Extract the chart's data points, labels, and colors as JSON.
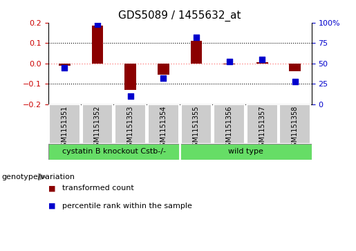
{
  "title": "GDS5089 / 1455632_at",
  "samples": [
    "GSM1151351",
    "GSM1151352",
    "GSM1151353",
    "GSM1151354",
    "GSM1151355",
    "GSM1151356",
    "GSM1151357",
    "GSM1151358"
  ],
  "transformed_count": [
    -0.01,
    0.185,
    -0.13,
    -0.055,
    0.11,
    -0.005,
    0.005,
    -0.04
  ],
  "percentile_rank": [
    45,
    98,
    10,
    32,
    82,
    52,
    55,
    28
  ],
  "left_ylim": [
    -0.2,
    0.2
  ],
  "right_ylim": [
    0,
    100
  ],
  "left_yticks": [
    -0.2,
    -0.1,
    0,
    0.1,
    0.2
  ],
  "right_yticks": [
    0,
    25,
    50,
    75,
    100
  ],
  "right_yticklabels": [
    "0",
    "25",
    "50",
    "75",
    "100%"
  ],
  "bar_color": "#8B0000",
  "dot_color": "#0000CD",
  "bar_width": 0.35,
  "dot_size": 28,
  "groups": [
    {
      "label": "cystatin B knockout Cstb-/-",
      "start": 0,
      "end": 3,
      "color": "#66DD66"
    },
    {
      "label": "wild type",
      "start": 4,
      "end": 7,
      "color": "#66DD66"
    }
  ],
  "legend_items": [
    {
      "label": "transformed count",
      "color": "#8B0000"
    },
    {
      "label": "percentile rank within the sample",
      "color": "#0000CD"
    }
  ],
  "genotype_label": "genotype/variation",
  "dotted_line_color": "#000000",
  "zero_line_color": "#FF8888",
  "background_color": "#FFFFFF",
  "plot_bg_color": "#FFFFFF",
  "tick_color_left": "#CC0000",
  "tick_color_right": "#0000CC",
  "sample_box_color": "#CCCCCC",
  "title_fontsize": 11,
  "tick_fontsize": 8,
  "sample_fontsize": 7,
  "group_fontsize": 8,
  "legend_fontsize": 8,
  "genotype_fontsize": 8
}
